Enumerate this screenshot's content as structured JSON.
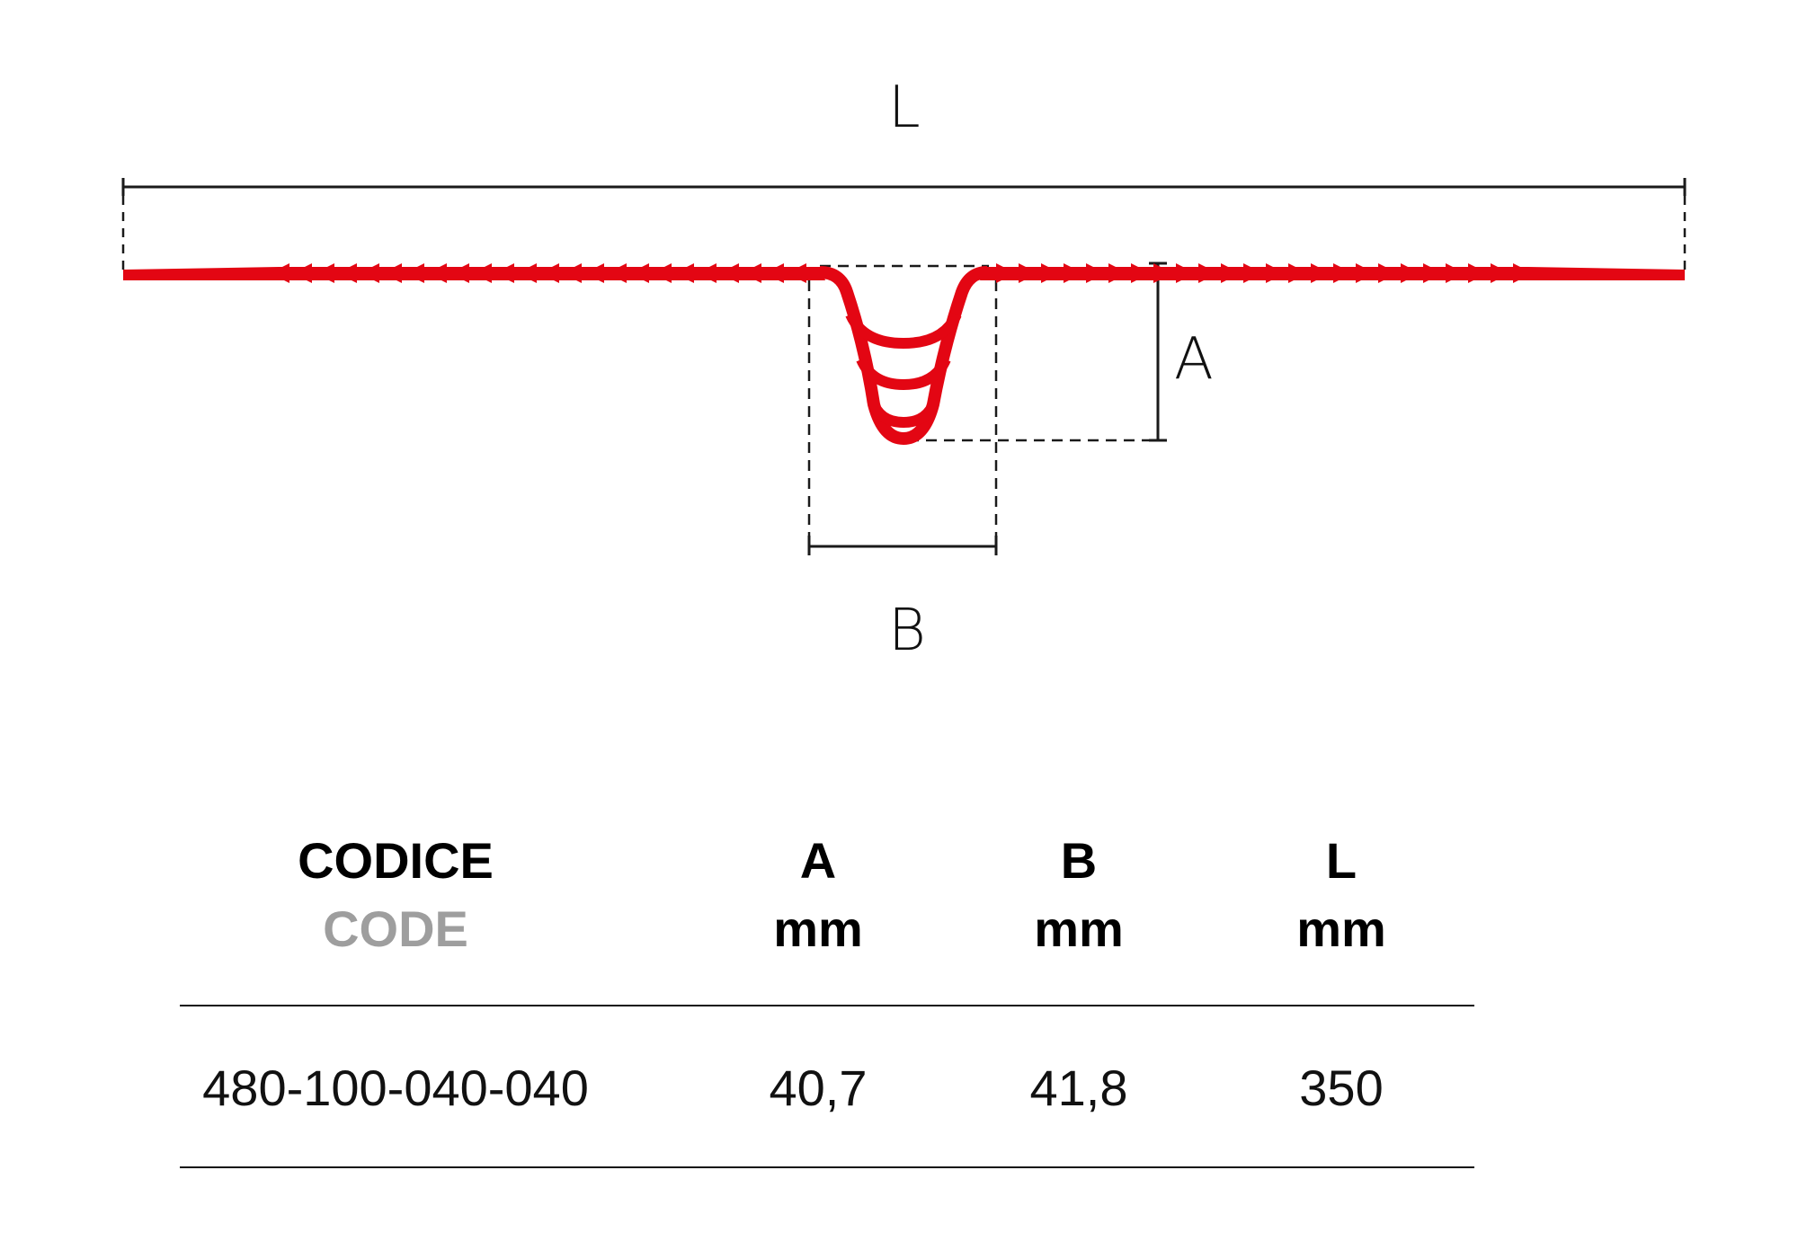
{
  "dimension_labels": {
    "length": "L",
    "depth": "A",
    "width": "B"
  },
  "colors": {
    "profile": "#e30613",
    "lines": "#1a1a1a",
    "code_secondary": "#9e9e9e"
  },
  "table": {
    "headers": [
      {
        "label": "CODICE",
        "sublabel": "CODE"
      },
      {
        "label": "A",
        "sublabel": "mm"
      },
      {
        "label": "B",
        "sublabel": "mm"
      },
      {
        "label": "L",
        "sublabel": "mm"
      }
    ],
    "rows": [
      {
        "code": "480-100-040-040",
        "a": "40,7",
        "b": "41,8",
        "l": "350"
      }
    ]
  }
}
